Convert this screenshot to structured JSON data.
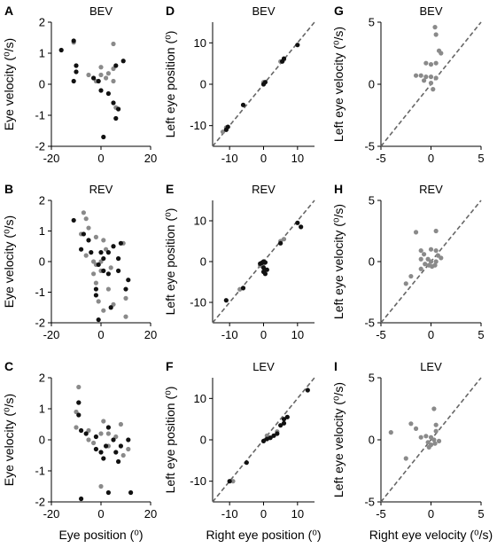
{
  "colors": {
    "grey": "#8a8a8a",
    "black": "#111111",
    "identity": "#666666"
  },
  "chart_data": [
    {
      "id": "A",
      "letter": "A",
      "type": "scatter",
      "title": "BEV",
      "xlabel": "",
      "ylabel": "Eye velocity (⁰/s)",
      "xlim": [
        -20,
        20
      ],
      "ylim": [
        -2,
        2
      ],
      "xticks": [
        -20,
        0,
        20
      ],
      "yticks": [
        -2,
        -1,
        0,
        1,
        2
      ],
      "identity_line": false,
      "series": [
        {
          "color": "grey",
          "points": [
            [
              -11,
              1.35
            ],
            [
              -5,
              0.3
            ],
            [
              -2,
              0.1
            ],
            [
              0,
              0.55
            ],
            [
              0,
              0.3
            ],
            [
              2,
              0.2
            ],
            [
              3,
              0.35
            ],
            [
              5,
              1.3
            ],
            [
              5,
              0.5
            ],
            [
              6,
              -0.75
            ],
            [
              5,
              0.1
            ]
          ]
        },
        {
          "color": "black",
          "points": [
            [
              -16,
              1.1
            ],
            [
              -11,
              1.4
            ],
            [
              -10,
              0.6
            ],
            [
              -10,
              0.4
            ],
            [
              -11,
              0.1
            ],
            [
              -3,
              0.2
            ],
            [
              -1,
              0.1
            ],
            [
              0,
              -0.2
            ],
            [
              3,
              -0.3
            ],
            [
              1,
              -1.7
            ],
            [
              5,
              -0.6
            ],
            [
              6,
              -1.1
            ],
            [
              7,
              -0.8
            ],
            [
              6,
              0.6
            ],
            [
              9,
              0.75
            ]
          ]
        }
      ]
    },
    {
      "id": "D",
      "letter": "D",
      "type": "scatter",
      "title": "BEV",
      "xlabel": "",
      "ylabel": "Left eye position (⁰)",
      "xlim": [
        -15,
        15
      ],
      "ylim": [
        -15,
        15
      ],
      "xticks": [
        -10,
        0,
        10
      ],
      "yticks": [
        -10,
        0,
        10
      ],
      "identity_line": true,
      "series": [
        {
          "color": "grey",
          "points": [
            [
              -12,
              -11.5
            ],
            [
              -11,
              -10.5
            ],
            [
              0,
              0.5
            ],
            [
              5,
              5.5
            ],
            [
              6,
              6
            ]
          ]
        },
        {
          "color": "black",
          "points": [
            [
              -11,
              -11
            ],
            [
              -10.5,
              -10.3
            ],
            [
              -6,
              -5
            ],
            [
              0,
              0
            ],
            [
              0.5,
              0.5
            ],
            [
              5.5,
              5.5
            ],
            [
              6,
              6.2
            ],
            [
              10,
              9.5
            ]
          ]
        }
      ]
    },
    {
      "id": "G",
      "letter": "G",
      "type": "scatter",
      "title": "BEV",
      "xlabel": "",
      "ylabel": "Left eye velocity (⁰/s)",
      "xlim": [
        -5,
        5
      ],
      "ylim": [
        -5,
        5
      ],
      "xticks": [
        -5,
        0,
        5
      ],
      "yticks": [
        -5,
        0,
        5
      ],
      "identity_line": true,
      "series": [
        {
          "color": "grey",
          "points": [
            [
              0.4,
              4.6
            ],
            [
              0.5,
              4
            ],
            [
              0.8,
              2.7
            ],
            [
              1,
              2.5
            ],
            [
              -0.5,
              1.7
            ],
            [
              0,
              1.6
            ],
            [
              0.5,
              1.7
            ],
            [
              -1.5,
              0.7
            ],
            [
              -1,
              0.7
            ],
            [
              -0.5,
              0.6
            ],
            [
              0,
              0.6
            ],
            [
              0.5,
              0.5
            ],
            [
              -0.7,
              0.3
            ],
            [
              0,
              0.1
            ],
            [
              0.2,
              -0.4
            ]
          ]
        }
      ]
    },
    {
      "id": "B",
      "letter": "B",
      "type": "scatter",
      "title": "REV",
      "xlabel": "",
      "ylabel": "Eye velocity (⁰/s)",
      "xlim": [
        -20,
        20
      ],
      "ylim": [
        -2,
        2
      ],
      "xticks": [
        -20,
        0,
        20
      ],
      "yticks": [
        -2,
        -1,
        0,
        1,
        2
      ],
      "identity_line": false,
      "series": [
        {
          "color": "grey",
          "points": [
            [
              -7,
              1.6
            ],
            [
              -6,
              1.4
            ],
            [
              -5,
              1.1
            ],
            [
              -8,
              0.9
            ],
            [
              -2,
              0.8
            ],
            [
              1,
              0.7
            ],
            [
              2,
              0.4
            ],
            [
              -6,
              0.2
            ],
            [
              -3,
              0
            ],
            [
              -2,
              -0.1
            ],
            [
              0,
              0
            ],
            [
              4,
              -0.2
            ],
            [
              -3,
              -0.4
            ],
            [
              0,
              -0.3
            ],
            [
              -2,
              -0.7
            ],
            [
              3,
              -0.9
            ],
            [
              -1,
              -1.3
            ],
            [
              5,
              -1.4
            ],
            [
              10,
              -1.2
            ],
            [
              10,
              -1.8
            ],
            [
              7,
              0.1
            ],
            [
              9,
              0.6
            ],
            [
              1,
              -1.6
            ]
          ]
        },
        {
          "color": "black",
          "points": [
            [
              -11,
              1.35
            ],
            [
              -7,
              0.9
            ],
            [
              -5,
              0.7
            ],
            [
              -8,
              0.4
            ],
            [
              -4,
              0.3
            ],
            [
              0,
              0.3
            ],
            [
              1,
              0.1
            ],
            [
              3,
              0.3
            ],
            [
              -1,
              -0.1
            ],
            [
              1,
              -0.3
            ],
            [
              3,
              -0.4
            ],
            [
              7,
              -0.3
            ],
            [
              7,
              0.1
            ],
            [
              8,
              0.6
            ],
            [
              11,
              -0.6
            ],
            [
              10,
              -0.9
            ],
            [
              4,
              -1.5
            ],
            [
              -2,
              -0.9
            ],
            [
              -2,
              -1.1
            ],
            [
              -1,
              -1.9
            ],
            [
              5,
              0.5
            ]
          ]
        }
      ]
    },
    {
      "id": "E",
      "letter": "E",
      "type": "scatter",
      "title": "REV",
      "xlabel": "",
      "ylabel": "Left eye position (⁰)",
      "xlim": [
        -15,
        15
      ],
      "ylim": [
        -15,
        15
      ],
      "xticks": [
        -10,
        0,
        10
      ],
      "yticks": [
        -10,
        0,
        10
      ],
      "identity_line": true,
      "series": [
        {
          "color": "grey",
          "points": [
            [
              -7,
              -6.8
            ],
            [
              -1,
              -1
            ],
            [
              0,
              -0.5
            ],
            [
              5,
              5
            ],
            [
              6,
              5.5
            ]
          ]
        },
        {
          "color": "black",
          "points": [
            [
              -11,
              -9.5
            ],
            [
              -6,
              -6.5
            ],
            [
              -1,
              -0.5
            ],
            [
              -0.5,
              -0.3
            ],
            [
              0,
              0
            ],
            [
              0.5,
              -0.2
            ],
            [
              0,
              -1.5
            ],
            [
              0,
              -2.5
            ],
            [
              0.5,
              -3
            ],
            [
              1,
              -2
            ],
            [
              5,
              4.5
            ],
            [
              10,
              9.5
            ],
            [
              11,
              8.5
            ]
          ]
        }
      ]
    },
    {
      "id": "H",
      "letter": "H",
      "type": "scatter",
      "title": "REV",
      "xlabel": "",
      "ylabel": "Left eye velocity (⁰/s)",
      "xlim": [
        -5,
        5
      ],
      "ylim": [
        -5,
        5
      ],
      "xticks": [
        -5,
        0,
        5
      ],
      "yticks": [
        -5,
        0,
        5
      ],
      "identity_line": true,
      "series": [
        {
          "color": "grey",
          "points": [
            [
              -1.5,
              2.4
            ],
            [
              0.5,
              2.5
            ],
            [
              -1,
              0.9
            ],
            [
              0,
              1
            ],
            [
              0.5,
              0.9
            ],
            [
              -0.7,
              0.6
            ],
            [
              0.7,
              0.5
            ],
            [
              -1,
              0.2
            ],
            [
              -0.3,
              0.2
            ],
            [
              0,
              0
            ],
            [
              0.5,
              0
            ],
            [
              -0.6,
              -0.2
            ],
            [
              -0.2,
              -0.3
            ],
            [
              0.1,
              -0.4
            ],
            [
              0.4,
              -0.3
            ],
            [
              -1,
              -0.6
            ],
            [
              -2,
              -1.2
            ],
            [
              -2.5,
              -1.8
            ],
            [
              1,
              0.3
            ]
          ]
        }
      ]
    },
    {
      "id": "C",
      "letter": "C",
      "type": "scatter",
      "title": "",
      "xlabel": "Eye position (⁰)",
      "ylabel": "Eye velocity (⁰/s)",
      "xlim": [
        -20,
        20
      ],
      "ylim": [
        -2,
        2
      ],
      "xticks": [
        -20,
        0,
        20
      ],
      "yticks": [
        -2,
        -1,
        0,
        1,
        2
      ],
      "identity_line": false,
      "series": [
        {
          "color": "grey",
          "points": [
            [
              -9,
              1.7
            ],
            [
              -9,
              1.2
            ],
            [
              -10,
              0.9
            ],
            [
              -10,
              0.4
            ],
            [
              -5,
              0.3
            ],
            [
              -5,
              0
            ],
            [
              -3,
              -0.1
            ],
            [
              0,
              0.2
            ],
            [
              1,
              0.6
            ],
            [
              3,
              0.2
            ],
            [
              3,
              -0.2
            ],
            [
              6,
              0.1
            ],
            [
              8,
              0.5
            ],
            [
              9,
              -0.5
            ],
            [
              11,
              -0.3
            ],
            [
              0,
              -1.5
            ]
          ]
        },
        {
          "color": "black",
          "points": [
            [
              -9,
              1.2
            ],
            [
              -9,
              0.8
            ],
            [
              -8,
              0.3
            ],
            [
              -6,
              0.2
            ],
            [
              -2,
              0.1
            ],
            [
              -2,
              -0.3
            ],
            [
              0,
              -0.4
            ],
            [
              1,
              -0.6
            ],
            [
              2,
              -0.2
            ],
            [
              3,
              0.4
            ],
            [
              5,
              0
            ],
            [
              6,
              -0.4
            ],
            [
              7,
              -0.7
            ],
            [
              8,
              -0.2
            ],
            [
              11,
              0
            ],
            [
              3,
              -1.7
            ],
            [
              12,
              -1.7
            ],
            [
              -8,
              -1.9
            ]
          ]
        }
      ]
    },
    {
      "id": "F",
      "letter": "F",
      "type": "scatter",
      "title": "LEV",
      "xlabel": "Right eye position (⁰)",
      "ylabel": "Left eye position (⁰)",
      "xlim": [
        -15,
        15
      ],
      "ylim": [
        -15,
        15
      ],
      "xticks": [
        -10,
        0,
        10
      ],
      "yticks": [
        -10,
        0,
        10
      ],
      "identity_line": true,
      "series": [
        {
          "color": "grey",
          "points": [
            [
              -9,
              -10
            ],
            [
              1,
              1
            ],
            [
              2,
              0.5
            ],
            [
              4,
              2
            ]
          ]
        },
        {
          "color": "black",
          "points": [
            [
              -10,
              -10
            ],
            [
              -5,
              -5.5
            ],
            [
              0,
              -0.3
            ],
            [
              1,
              0.2
            ],
            [
              2,
              0.5
            ],
            [
              3,
              1
            ],
            [
              4,
              1.5
            ],
            [
              5,
              3.5
            ],
            [
              6,
              4
            ],
            [
              7,
              5.5
            ],
            [
              6,
              5
            ],
            [
              13,
              12
            ]
          ]
        }
      ]
    },
    {
      "id": "I",
      "letter": "I",
      "type": "scatter",
      "title": "LEV",
      "xlabel": "Right eye velocity (⁰/s)",
      "ylabel": "Left eye velocity (⁰/s)",
      "xlim": [
        -5,
        5
      ],
      "ylim": [
        -5,
        5
      ],
      "xticks": [
        -5,
        0,
        5
      ],
      "yticks": [
        -5,
        0,
        5
      ],
      "identity_line": true,
      "series": [
        {
          "color": "grey",
          "points": [
            [
              -4,
              0.6
            ],
            [
              0.3,
              2.5
            ],
            [
              -2,
              1.3
            ],
            [
              -1.5,
              0.9
            ],
            [
              0.5,
              1.2
            ],
            [
              0.5,
              0.7
            ],
            [
              -1,
              0.2
            ],
            [
              -0.5,
              0.3
            ],
            [
              0,
              0.2
            ],
            [
              0.3,
              0
            ],
            [
              -0.3,
              -0.2
            ],
            [
              0,
              -0.4
            ],
            [
              0.4,
              -0.3
            ],
            [
              -2.5,
              -1.5
            ],
            [
              -0.2,
              -0.6
            ],
            [
              0.8,
              -0.1
            ]
          ]
        }
      ]
    }
  ]
}
